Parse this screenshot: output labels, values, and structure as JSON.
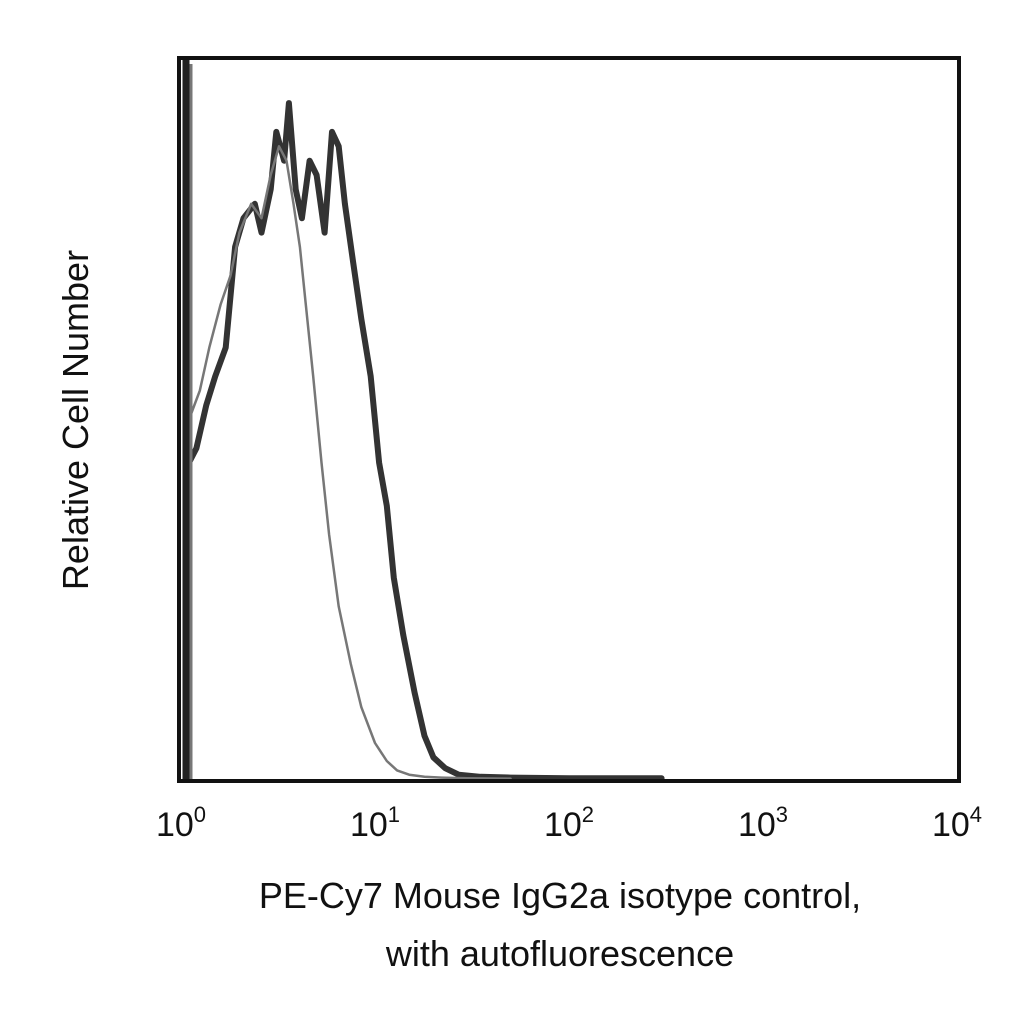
{
  "chart_data": {
    "type": "line",
    "xscale": "log",
    "xlim": [
      1,
      10000
    ],
    "ylim": [
      0,
      100
    ],
    "grid": false,
    "legend": "none",
    "xlabel_lines": [
      "PE-Cy7 Mouse IgG2a isotype control,",
      "with autofluorescence"
    ],
    "ylabel": "Relative Cell Number",
    "x_ticks": [
      {
        "base": "10",
        "exp": "0",
        "value": 1
      },
      {
        "base": "10",
        "exp": "1",
        "value": 10
      },
      {
        "base": "10",
        "exp": "2",
        "value": 100
      },
      {
        "base": "10",
        "exp": "3",
        "value": 1000
      },
      {
        "base": "10",
        "exp": "4",
        "value": 10000
      }
    ],
    "series": [
      {
        "color": "#333333",
        "width": 6,
        "x": [
          1.1,
          1.2,
          1.35,
          1.5,
          1.7,
          1.9,
          2.1,
          2.4,
          2.6,
          2.9,
          3.1,
          3.4,
          3.6,
          3.9,
          4.2,
          4.6,
          5.0,
          5.5,
          6.0,
          6.5,
          7.0,
          7.7,
          8.5,
          9.5,
          10.5,
          11.5,
          12.5,
          14,
          16,
          18,
          20,
          23,
          27,
          35,
          50,
          100,
          300
        ],
        "y": [
          44,
          46,
          52,
          56,
          60,
          74,
          78,
          80,
          76,
          82,
          90,
          86,
          94,
          82,
          78,
          86,
          84,
          76,
          90,
          88,
          80,
          72,
          64,
          56,
          44,
          38,
          28,
          20,
          12,
          6,
          3,
          1.5,
          0.6,
          0.3,
          0.2,
          0.1,
          0.1
        ]
      },
      {
        "color": "#777777",
        "width": 2.5,
        "x": [
          1.1,
          1.25,
          1.4,
          1.6,
          1.8,
          2.0,
          2.3,
          2.6,
          2.9,
          3.2,
          3.5,
          3.8,
          4.1,
          4.4,
          4.8,
          5.3,
          5.8,
          6.5,
          7.5,
          8.5,
          10,
          11.5,
          13,
          15,
          18,
          22,
          30,
          50
        ],
        "y": [
          50,
          54,
          60,
          66,
          70,
          76,
          80,
          78,
          84,
          88,
          86,
          80,
          74,
          66,
          56,
          44,
          34,
          24,
          16,
          10,
          5,
          2.5,
          1.2,
          0.6,
          0.3,
          0.2,
          0.1,
          0.05
        ]
      }
    ]
  }
}
